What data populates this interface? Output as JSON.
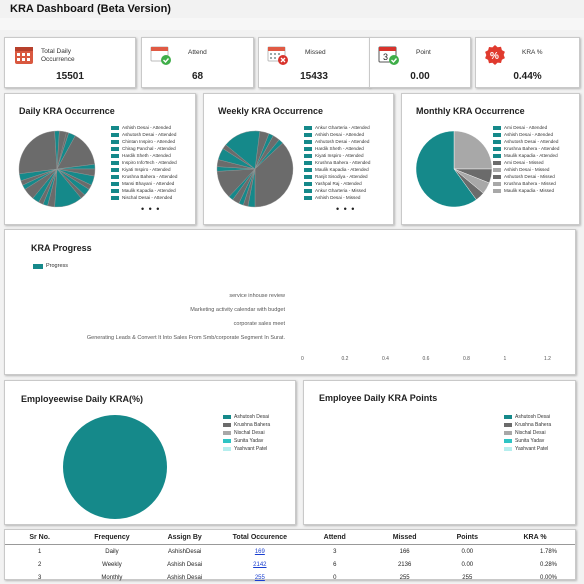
{
  "page_title": "KRA Dashboard (Beta Version)",
  "kpis": [
    {
      "label": "Total Daily\nOccurrence",
      "value": "15501",
      "icon": "calendar-grid-icon"
    },
    {
      "label": "Attend",
      "value": "68",
      "icon": "calendar-check-icon"
    },
    {
      "label": "Missed",
      "value": "15433",
      "icon": "calendar-missed-icon"
    },
    {
      "label": "Point",
      "value": "0.00",
      "icon": "calendar-point-icon"
    },
    {
      "label": "KRA %",
      "value": "0.44%",
      "icon": "percent-badge-icon"
    }
  ],
  "daily_occurrence": {
    "title": "Daily KRA Occurrence",
    "legend": [
      "Ashish Desai - Attended",
      "Ashutosh Desai - Attended",
      "Chintan Inspiro - Attended",
      "Chirag Panchal - Attended",
      "Hardik Sheth - Attended",
      "Inspiro InfoTech - Attended",
      "Kiyati Inspiro - Attended",
      "Krushna Bahera - Attended",
      "Mansi Bhayani - Attended",
      "Maulik Kapadia - Attended",
      "Nischal Desai - Attended"
    ],
    "more": "• • •"
  },
  "weekly_occurrence": {
    "title": "Weekly KRA Occurrence",
    "legend": [
      "Ankur Gharteria - Attended",
      "Ashish Desai - Attended",
      "Ashutosh Desai - Attended",
      "Hardik Sheth - Attended",
      "Kiyati Inspiro - Attended",
      "Krushna Bahera - Attended",
      "Maulik Kapadia - Attended",
      "Ranjit Sisodiya - Attended",
      "Yashpal Raj - Attended",
      "Ankur Gharteria - Missed",
      "Ashish Desai - Missed"
    ],
    "more": "• • •"
  },
  "monthly_occurrence": {
    "title": "Monthly KRA Occurrence",
    "legend": [
      "Ami Desai - Attended",
      "Ashish Desai - Attended",
      "Ashutosh Desai - Attended",
      "Krushna Bahera - Attended",
      "Maulik Kapadia - Attended",
      "Ami Desai - Missed",
      "Ashish Desai - Missed",
      "Ashutosh Desai - Missed",
      "Krushna Bahera - Missed",
      "Maulik Kapadia - Missed"
    ]
  },
  "kra_progress": {
    "title": "KRA Progress",
    "legend": "Progress",
    "categories": [
      "service inhouse review",
      "Marketing activity calendar with budget",
      "corporate sales meet",
      "Generating Leads & Convert It Into Sales From Smb/corporate Segment In Surat."
    ],
    "ticks": [
      "0",
      "0.2",
      "0.4",
      "0.6",
      "0.8",
      "1",
      "1.2"
    ]
  },
  "employee_daily_kra": {
    "title": "Employeewise Daily KRA(%)",
    "legend": [
      "Ashutosh Desai",
      "Krushna Bahera",
      "Nischal Desai",
      "Sunita Yadav",
      "Yashvant Patel"
    ]
  },
  "employee_daily_points": {
    "title": "Employee Daily KRA Points",
    "legend": [
      "Ashutosh Desai",
      "Krushna Bahera",
      "Nischal Desai",
      "Sunita Yadav",
      "Yashvant Patel"
    ]
  },
  "summary_table": {
    "headers": [
      "Sr No.",
      "Frequency",
      "Assign By",
      "Total Occurence",
      "Attend",
      "Missed",
      "Points",
      "KRA %"
    ],
    "rows": [
      [
        "1",
        "Daily",
        "AshishDesai",
        "169",
        "3",
        "166",
        "0.00",
        "1.78%"
      ],
      [
        "2",
        "Weekly",
        "Ashish Desai",
        "2142",
        "6",
        "2136",
        "0.00",
        "0.28%"
      ],
      [
        "3",
        "Monthly",
        "Ashish Desai",
        "255",
        "0",
        "255",
        "255",
        "0.00%"
      ]
    ]
  },
  "colors": {
    "teal": "#15898a",
    "grey": "#6b6b6b",
    "lightgrey": "#a8a8a8",
    "cyan": "#2ec4c4",
    "palecyan": "#b5eeee"
  }
}
